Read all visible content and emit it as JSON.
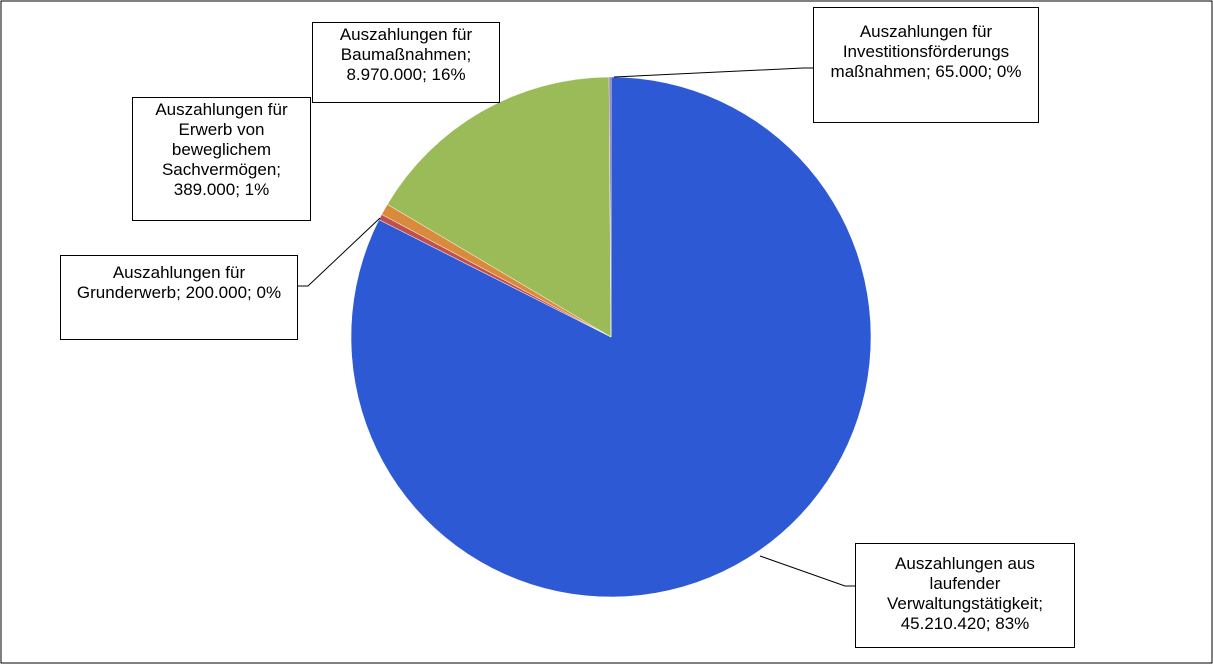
{
  "chart_data": {
    "type": "pie",
    "categories": [
      "Auszahlungen aus laufender Verwaltungstätigkeit",
      "Auszahlungen für Grunderwerb",
      "Auszahlungen für Erwerb von beweglichem Sachvermögen",
      "Auszahlungen für Baumaßnahmen",
      "Auszahlungen für Investitionsförderungs maßnahmen"
    ],
    "values": [
      45210420,
      200000,
      389000,
      8970000,
      65000
    ],
    "value_labels": [
      "45.210.420",
      "200.000",
      "389.000",
      "8.970.000",
      "65.000"
    ],
    "percent_labels": [
      "83%",
      "0%",
      "1%",
      "16%",
      "0%"
    ],
    "colors": [
      "#2e59d4",
      "#c0504d",
      "#d98a3a",
      "#9bbb59",
      "#8064a2"
    ]
  }
}
